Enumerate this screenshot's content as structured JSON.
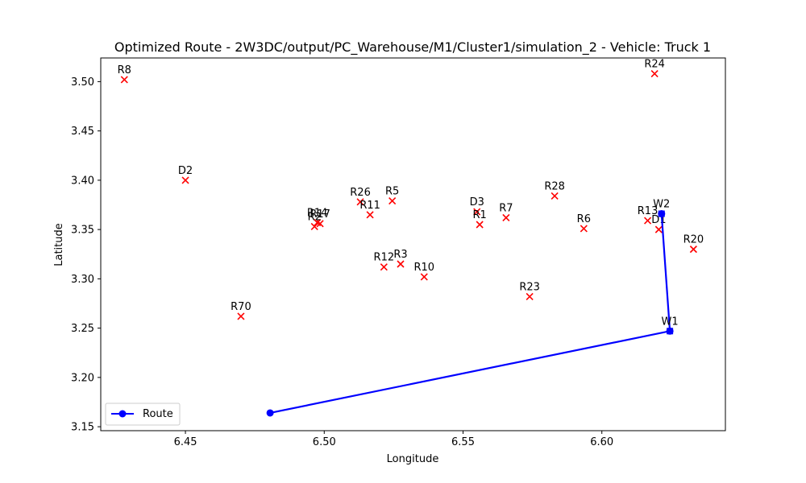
{
  "chart_data": {
    "type": "scatter",
    "title": "Optimized Route - 2W3DC/output/PC_Warehouse/M1/Cluster1/simulation_2 - Vehicle: Truck 1",
    "xlabel": "Longitude",
    "ylabel": "Latitude",
    "xlim": [
      6.4195,
      6.6445
    ],
    "ylim": [
      3.146,
      3.524
    ],
    "xticks": [
      6.45,
      6.5,
      6.55,
      6.6
    ],
    "xtick_labels": [
      "6.45",
      "6.50",
      "6.55",
      "6.60"
    ],
    "yticks": [
      3.15,
      3.2,
      3.25,
      3.3,
      3.35,
      3.4,
      3.45,
      3.5
    ],
    "ytick_labels": [
      "3.15",
      "3.20",
      "3.25",
      "3.30",
      "3.35",
      "3.40",
      "3.45",
      "3.50"
    ],
    "grid": false,
    "legend": {
      "position": "lower-left",
      "entries": [
        {
          "label": "Route",
          "color": "#0000ff"
        }
      ]
    },
    "points": [
      {
        "label": "R8",
        "x": 6.428,
        "y": 3.502
      },
      {
        "label": "R24",
        "x": 6.619,
        "y": 3.508
      },
      {
        "label": "D2",
        "x": 6.45,
        "y": 3.4
      },
      {
        "label": "R26",
        "x": 6.513,
        "y": 3.378
      },
      {
        "label": "R5",
        "x": 6.5245,
        "y": 3.379
      },
      {
        "label": "R11",
        "x": 6.5165,
        "y": 3.365
      },
      {
        "label": "R14",
        "x": 6.4975,
        "y": 3.357
      },
      {
        "label": "R17",
        "x": 6.4985,
        "y": 3.356
      },
      {
        "label": "R2",
        "x": 6.4965,
        "y": 3.353
      },
      {
        "label": "D3",
        "x": 6.555,
        "y": 3.368
      },
      {
        "label": "R7",
        "x": 6.5655,
        "y": 3.362
      },
      {
        "label": "R1",
        "x": 6.556,
        "y": 3.355
      },
      {
        "label": "R28",
        "x": 6.583,
        "y": 3.384
      },
      {
        "label": "R6",
        "x": 6.5935,
        "y": 3.351
      },
      {
        "label": "R13",
        "x": 6.6165,
        "y": 3.359
      },
      {
        "label": "D1",
        "x": 6.6205,
        "y": 3.35
      },
      {
        "label": "R20",
        "x": 6.633,
        "y": 3.33
      },
      {
        "label": "R12",
        "x": 6.5215,
        "y": 3.312
      },
      {
        "label": "R3",
        "x": 6.5275,
        "y": 3.315
      },
      {
        "label": "R10",
        "x": 6.536,
        "y": 3.302
      },
      {
        "label": "R23",
        "x": 6.574,
        "y": 3.282
      },
      {
        "label": "R70",
        "x": 6.47,
        "y": 3.262
      }
    ],
    "point_color": "#ff0000",
    "warehouses": [
      {
        "label": "W2",
        "x": 6.6215,
        "y": 3.366
      },
      {
        "label": "W1",
        "x": 6.6245,
        "y": 3.247
      }
    ],
    "warehouse_color": "#0000ff",
    "route": {
      "name": "Route",
      "color": "#0000ff",
      "x": [
        6.4805,
        6.6245,
        6.6215
      ],
      "y": [
        3.164,
        3.247,
        3.366
      ]
    }
  }
}
